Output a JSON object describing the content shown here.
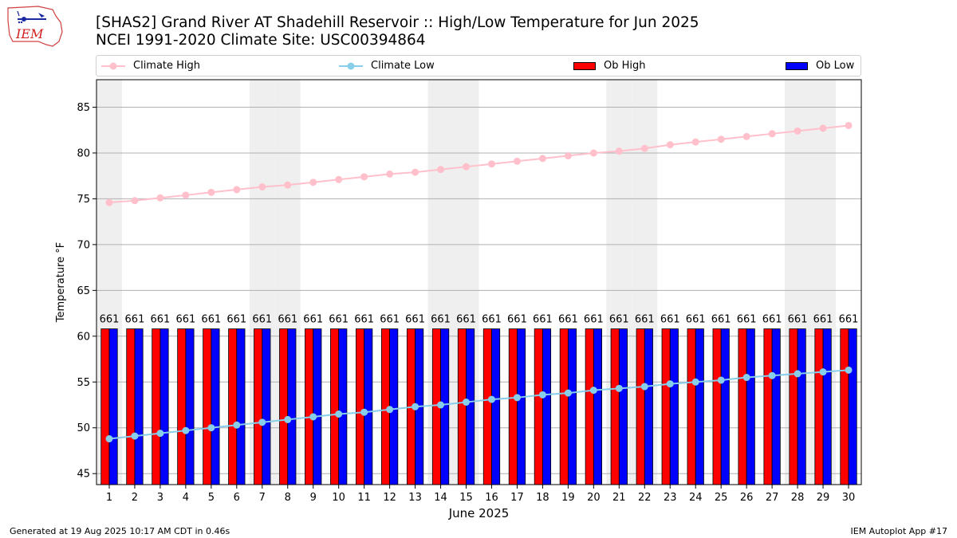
{
  "header": {
    "title_line1": "[SHAS2] Grand River  AT Shadehill Reservoir :: High/Low Temperature for Jun 2025",
    "title_line2": "NCEI 1991-2020 Climate Site: USC00394864",
    "logo_text": "IEM"
  },
  "footer": {
    "generated": "Generated at 19 Aug 2025 10:17 AM CDT in 0.46s",
    "app": "IEM Autoplot App #17"
  },
  "colors": {
    "climate_high": "#ffc0cb",
    "climate_low": "#87ceeb",
    "ob_high": "#ff0000",
    "ob_low": "#0000ff",
    "weekend_band": "#efefef",
    "grid": "#b0b0b0"
  },
  "chart_data": {
    "type": "bar",
    "xlabel": "June 2025",
    "ylabel": "Temperature °F",
    "ylim": [
      43.8,
      88
    ],
    "yticks": [
      45,
      50,
      55,
      60,
      65,
      70,
      75,
      80,
      85
    ],
    "grid": "horizontal",
    "legend_position": "top",
    "x": [
      1,
      2,
      3,
      4,
      5,
      6,
      7,
      8,
      9,
      10,
      11,
      12,
      13,
      14,
      15,
      16,
      17,
      18,
      19,
      20,
      21,
      22,
      23,
      24,
      25,
      26,
      27,
      28,
      29,
      30
    ],
    "weekend_days": [
      1,
      7,
      8,
      14,
      15,
      21,
      22,
      28,
      29
    ],
    "series": [
      {
        "name": "Climate High",
        "type": "line",
        "values": [
          74.6,
          74.8,
          75.1,
          75.4,
          75.7,
          76.0,
          76.3,
          76.5,
          76.8,
          77.1,
          77.4,
          77.7,
          77.9,
          78.2,
          78.5,
          78.8,
          79.1,
          79.4,
          79.7,
          80.0,
          80.2,
          80.5,
          80.9,
          81.2,
          81.5,
          81.8,
          82.1,
          82.4,
          82.7,
          83.0
        ]
      },
      {
        "name": "Climate Low",
        "type": "line",
        "values": [
          48.8,
          49.1,
          49.4,
          49.7,
          50.0,
          50.3,
          50.6,
          50.9,
          51.2,
          51.5,
          51.7,
          52.0,
          52.3,
          52.5,
          52.8,
          53.1,
          53.3,
          53.6,
          53.8,
          54.1,
          54.3,
          54.5,
          54.8,
          55.0,
          55.2,
          55.5,
          55.7,
          55.9,
          56.1,
          56.3
        ]
      },
      {
        "name": "Ob High",
        "type": "bar",
        "values": [
          60.8,
          60.8,
          60.8,
          60.8,
          60.8,
          60.8,
          60.8,
          60.8,
          60.8,
          60.8,
          60.8,
          60.8,
          60.8,
          60.8,
          60.8,
          60.8,
          60.8,
          60.8,
          60.8,
          60.8,
          60.8,
          60.8,
          60.8,
          60.8,
          60.8,
          60.8,
          60.8,
          60.8,
          60.8,
          60.8
        ]
      },
      {
        "name": "Ob Low",
        "type": "bar",
        "values": [
          60.8,
          60.8,
          60.8,
          60.8,
          60.8,
          60.8,
          60.8,
          60.8,
          60.8,
          60.8,
          60.8,
          60.8,
          60.8,
          60.8,
          60.8,
          60.8,
          60.8,
          60.8,
          60.8,
          60.8,
          60.8,
          60.8,
          60.8,
          60.8,
          60.8,
          60.8,
          60.8,
          60.8,
          60.8,
          60.8
        ]
      }
    ],
    "bar_labels": [
      "661",
      "661",
      "661",
      "661",
      "661",
      "661",
      "661",
      "661",
      "661",
      "661",
      "661",
      "661",
      "661",
      "661",
      "661",
      "661",
      "661",
      "661",
      "661",
      "661",
      "661",
      "661",
      "661",
      "661",
      "661",
      "661",
      "661",
      "661",
      "661",
      "661"
    ]
  }
}
